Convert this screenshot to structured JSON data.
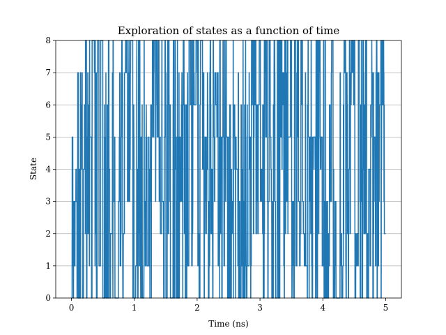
{
  "chart_data": {
    "type": "line",
    "title": "Exploration of states as a function of time",
    "xlabel": "Time (ns)",
    "ylabel": "State",
    "xlim": [
      -0.25,
      5.25
    ],
    "ylim": [
      0,
      8
    ],
    "xticks": [
      0,
      1,
      2,
      3,
      4,
      5
    ],
    "yticks": [
      0,
      1,
      2,
      3,
      4,
      5,
      6,
      7,
      8
    ],
    "grid": "horizontal",
    "series": [
      {
        "color": "#1f77b4",
        "x": [
          0,
          0.25,
          0.5,
          0.75,
          1,
          1.25,
          1.5,
          1.75,
          2,
          2.25,
          2.5,
          2.75,
          3,
          3.25,
          3.5,
          3.75,
          4,
          4.25,
          4.5,
          4.75,
          5
        ],
        "y": [
          0,
          8,
          0,
          7,
          1,
          5,
          0,
          6,
          2,
          5,
          0,
          6,
          3,
          8,
          1,
          5,
          0,
          7,
          2,
          6,
          0
        ],
        "style": "rapid state switching between 0 and 8, dense fill over t = 0 to 5 ns"
      }
    ]
  }
}
